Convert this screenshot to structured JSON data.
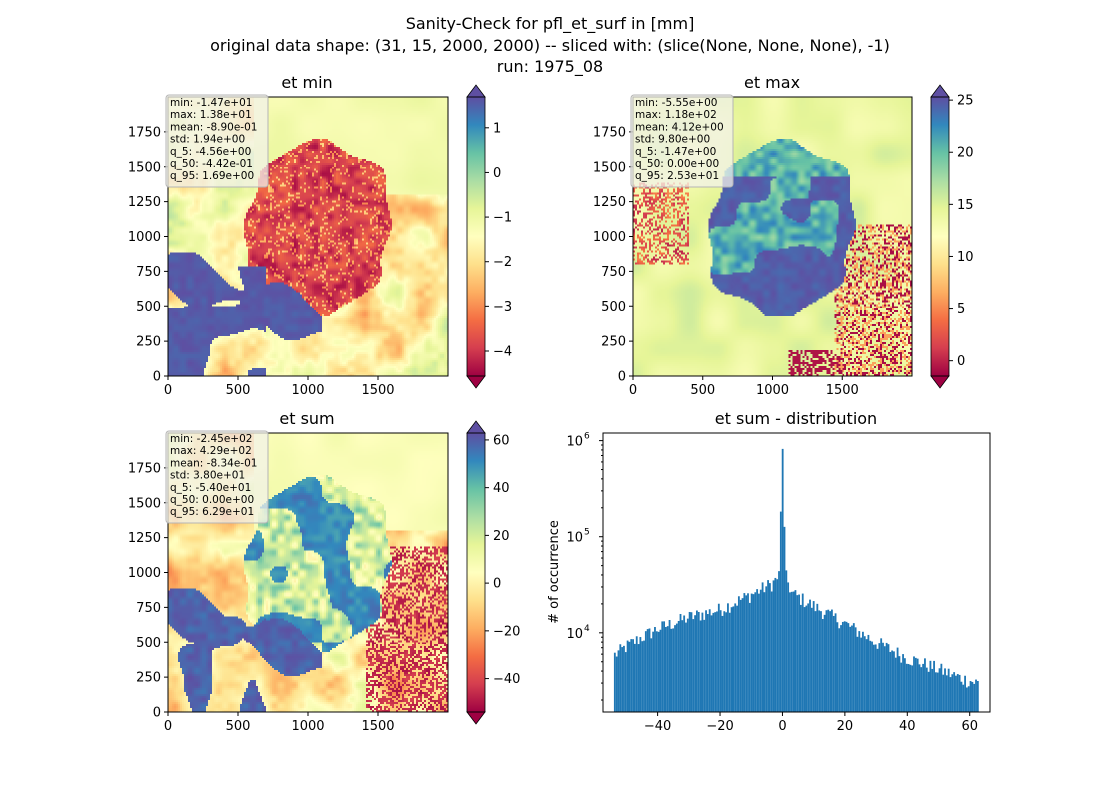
{
  "figure": {
    "title_lines": [
      "Sanity-Check for pfl_et_surf in [mm]",
      "original data shape: (31, 15, 2000, 2000) -- sliced with: (slice(None, None, None), -1)",
      "run: 1975_08"
    ]
  },
  "colors": {
    "spectral": [
      "#9e0142",
      "#d53e4f",
      "#f46d43",
      "#fdae61",
      "#fee08b",
      "#ffffbf",
      "#e6f598",
      "#abdda4",
      "#66c2a5",
      "#3288bd",
      "#5e4fa2"
    ],
    "hist_bar": "#1f77b4"
  },
  "chart_data": [
    {
      "type": "heatmap",
      "title": "et min",
      "xticks": [
        "0",
        "500",
        "1000",
        "1500"
      ],
      "yticks": [
        "0",
        "250",
        "500",
        "750",
        "1000",
        "1250",
        "1500",
        "1750"
      ],
      "xlim": [
        0,
        2000
      ],
      "ylim": [
        0,
        2000
      ],
      "colorbar": {
        "vmin": -4.56,
        "vmax": 1.69,
        "ticks": [
          "1",
          "0",
          "−1",
          "−2",
          "−3",
          "−4"
        ],
        "tick_values": [
          1,
          0,
          -1,
          -2,
          -3,
          -4
        ],
        "extend": "both"
      },
      "stats": [
        "min: -1.47e+01",
        "max: 1.38e+01",
        "mean: -8.90e-01",
        "std: 1.94e+00",
        "q_5: -4.56e+00",
        "q_50: -4.42e-01",
        "q_95: 1.69e+00"
      ]
    },
    {
      "type": "heatmap",
      "title": "et max",
      "xticks": [
        "0",
        "500",
        "1000",
        "1500"
      ],
      "yticks": [
        "0",
        "250",
        "500",
        "750",
        "1000",
        "1250",
        "1500",
        "1750"
      ],
      "xlim": [
        0,
        2000
      ],
      "ylim": [
        0,
        2000
      ],
      "colorbar": {
        "vmin": -1.47,
        "vmax": 25.3,
        "ticks": [
          "25",
          "20",
          "15",
          "10",
          "5",
          "0"
        ],
        "tick_values": [
          25,
          20,
          15,
          10,
          5,
          0
        ],
        "extend": "both"
      },
      "stats": [
        "min: -5.55e+00",
        "max: 1.18e+02",
        "mean: 4.12e+00",
        "std: 9.80e+00",
        "q_5: -1.47e+00",
        "q_50: 0.00e+00",
        "q_95: 2.53e+01"
      ]
    },
    {
      "type": "heatmap",
      "title": "et sum",
      "xticks": [
        "0",
        "500",
        "1000",
        "1500"
      ],
      "yticks": [
        "0",
        "250",
        "500",
        "750",
        "1000",
        "1250",
        "1500",
        "1750"
      ],
      "xlim": [
        0,
        2000
      ],
      "ylim": [
        0,
        2000
      ],
      "colorbar": {
        "vmin": -54.0,
        "vmax": 62.9,
        "ticks": [
          "60",
          "40",
          "20",
          "0",
          "−20",
          "−40"
        ],
        "tick_values": [
          60,
          40,
          20,
          0,
          -20,
          -40
        ],
        "extend": "both"
      },
      "stats": [
        "min: -2.45e+02",
        "max: 4.29e+02",
        "mean: -8.34e-01",
        "std: 3.80e+01",
        "q_5: -5.40e+01",
        "q_50: 0.00e+00",
        "q_95: 6.29e+01"
      ]
    },
    {
      "type": "bar",
      "title": "et sum - distribution",
      "ylabel": "# of occurrence",
      "yscale": "log",
      "xlim": [
        -57.5,
        66.5
      ],
      "ylim": [
        1500,
        1200000
      ],
      "xticks": [
        "−40",
        "−20",
        "0",
        "20",
        "40",
        "60"
      ],
      "xtick_values": [
        -40,
        -20,
        0,
        20,
        40,
        60
      ],
      "yticks": [
        "10^4",
        "10^5",
        "10^6"
      ],
      "ytick_values": [
        10000,
        100000,
        1000000
      ],
      "bins": {
        "start": -54.0,
        "end": 62.9,
        "count": 200
      },
      "envelope_points": [
        [
          -54,
          5800
        ],
        [
          -50,
          7200
        ],
        [
          -45,
          9000
        ],
        [
          -40,
          11000
        ],
        [
          -30,
          14500
        ],
        [
          -20,
          17500
        ],
        [
          -10,
          25000
        ],
        [
          -3,
          33000
        ],
        [
          -1,
          40000
        ],
        [
          0,
          820000
        ],
        [
          1,
          40000
        ],
        [
          3,
          26000
        ],
        [
          10,
          19000
        ],
        [
          20,
          12500
        ],
        [
          30,
          8000
        ],
        [
          40,
          5500
        ],
        [
          50,
          4200
        ],
        [
          58,
          3300
        ],
        [
          62.9,
          3000
        ]
      ]
    }
  ]
}
